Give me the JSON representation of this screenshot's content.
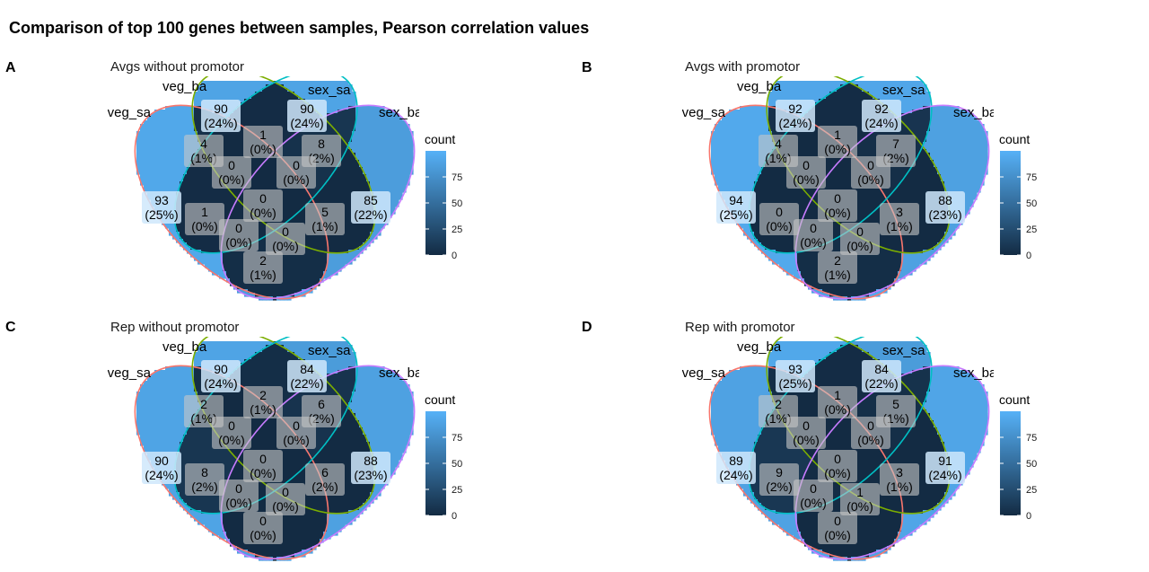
{
  "chart_data": {
    "type": "venn",
    "title": "Comparison of top 100 genes between samples, Pearson correlation values",
    "sets": [
      "veg_sa",
      "veg_ba",
      "sex_sa",
      "sex_ba"
    ],
    "set_label_display": [
      "veg_sa",
      "veg_ba",
      "sex_sa",
      "sex_ba"
    ],
    "legend": {
      "title": "count",
      "range": [
        0,
        100
      ],
      "ticks": [
        0,
        25,
        50,
        75
      ]
    },
    "colors": {
      "low": "#132B43",
      "high": "#56B1F7",
      "outline_veg_sa": "#F8766D",
      "outline_veg_ba": "#7CAE00",
      "outline_sex_sa": "#00BFC4",
      "outline_sex_ba": "#C77CFF"
    },
    "region_order": [
      "veg_sa",
      "veg_ba",
      "sex_sa",
      "sex_ba",
      "veg_sa&veg_ba",
      "veg_sa&sex_sa",
      "veg_sa&sex_ba",
      "veg_ba&sex_sa",
      "veg_ba&sex_ba",
      "sex_sa&sex_ba",
      "veg_sa&veg_ba&sex_sa",
      "veg_sa&veg_ba&sex_ba",
      "veg_sa&sex_sa&sex_ba",
      "veg_ba&sex_sa&sex_ba",
      "all"
    ],
    "panels": [
      {
        "letter": "A",
        "title": "Avgs without promotor",
        "regions": [
          {
            "count": "93",
            "pct": "(25%)"
          },
          {
            "count": "90",
            "pct": "(24%)"
          },
          {
            "count": "90",
            "pct": "(24%)"
          },
          {
            "count": "85",
            "pct": "(22%)"
          },
          {
            "count": "4",
            "pct": "(1%)"
          },
          {
            "count": "1",
            "pct": "(0%)"
          },
          {
            "count": "2",
            "pct": "(1%)"
          },
          {
            "count": "1",
            "pct": "(0%)"
          },
          {
            "count": "0",
            "pct": "(0%)"
          },
          {
            "count": "8",
            "pct": "(2%)"
          },
          {
            "count": "0",
            "pct": "(0%)"
          },
          {
            "count": "0",
            "pct": "(0%)"
          },
          {
            "count": "0",
            "pct": "(0%)"
          },
          {
            "count": "5",
            "pct": "(1%)"
          },
          {
            "count": "0",
            "pct": "(0%)"
          }
        ]
      },
      {
        "letter": "B",
        "title": "Avgs with promotor",
        "regions": [
          {
            "count": "94",
            "pct": "(25%)"
          },
          {
            "count": "92",
            "pct": "(24%)"
          },
          {
            "count": "92",
            "pct": "(24%)"
          },
          {
            "count": "88",
            "pct": "(23%)"
          },
          {
            "count": "4",
            "pct": "(1%)"
          },
          {
            "count": "0",
            "pct": "(0%)"
          },
          {
            "count": "2",
            "pct": "(1%)"
          },
          {
            "count": "1",
            "pct": "(0%)"
          },
          {
            "count": "0",
            "pct": "(0%)"
          },
          {
            "count": "7",
            "pct": "(2%)"
          },
          {
            "count": "0",
            "pct": "(0%)"
          },
          {
            "count": "0",
            "pct": "(0%)"
          },
          {
            "count": "0",
            "pct": "(0%)"
          },
          {
            "count": "3",
            "pct": "(1%)"
          },
          {
            "count": "0",
            "pct": "(0%)"
          }
        ]
      },
      {
        "letter": "C",
        "title": "Rep without promotor",
        "regions": [
          {
            "count": "90",
            "pct": "(24%)"
          },
          {
            "count": "90",
            "pct": "(24%)"
          },
          {
            "count": "84",
            "pct": "(22%)"
          },
          {
            "count": "88",
            "pct": "(23%)"
          },
          {
            "count": "2",
            "pct": "(1%)"
          },
          {
            "count": "8",
            "pct": "(2%)"
          },
          {
            "count": "0",
            "pct": "(0%)"
          },
          {
            "count": "2",
            "pct": "(1%)"
          },
          {
            "count": "0",
            "pct": "(0%)"
          },
          {
            "count": "6",
            "pct": "(2%)"
          },
          {
            "count": "0",
            "pct": "(0%)"
          },
          {
            "count": "0",
            "pct": "(0%)"
          },
          {
            "count": "0",
            "pct": "(0%)"
          },
          {
            "count": "6",
            "pct": "(2%)"
          },
          {
            "count": "0",
            "pct": "(0%)"
          }
        ]
      },
      {
        "letter": "D",
        "title": "Rep with promotor",
        "regions": [
          {
            "count": "89",
            "pct": "(24%)"
          },
          {
            "count": "93",
            "pct": "(25%)"
          },
          {
            "count": "84",
            "pct": "(22%)"
          },
          {
            "count": "91",
            "pct": "(24%)"
          },
          {
            "count": "2",
            "pct": "(1%)"
          },
          {
            "count": "9",
            "pct": "(2%)"
          },
          {
            "count": "0",
            "pct": "(0%)"
          },
          {
            "count": "1",
            "pct": "(0%)"
          },
          {
            "count": "0",
            "pct": "(0%)"
          },
          {
            "count": "5",
            "pct": "(1%)"
          },
          {
            "count": "0",
            "pct": "(0%)"
          },
          {
            "count": "0",
            "pct": "(0%)"
          },
          {
            "count": "1",
            "pct": "(0%)"
          },
          {
            "count": "3",
            "pct": "(1%)"
          },
          {
            "count": "0",
            "pct": "(0%)"
          }
        ]
      }
    ]
  }
}
